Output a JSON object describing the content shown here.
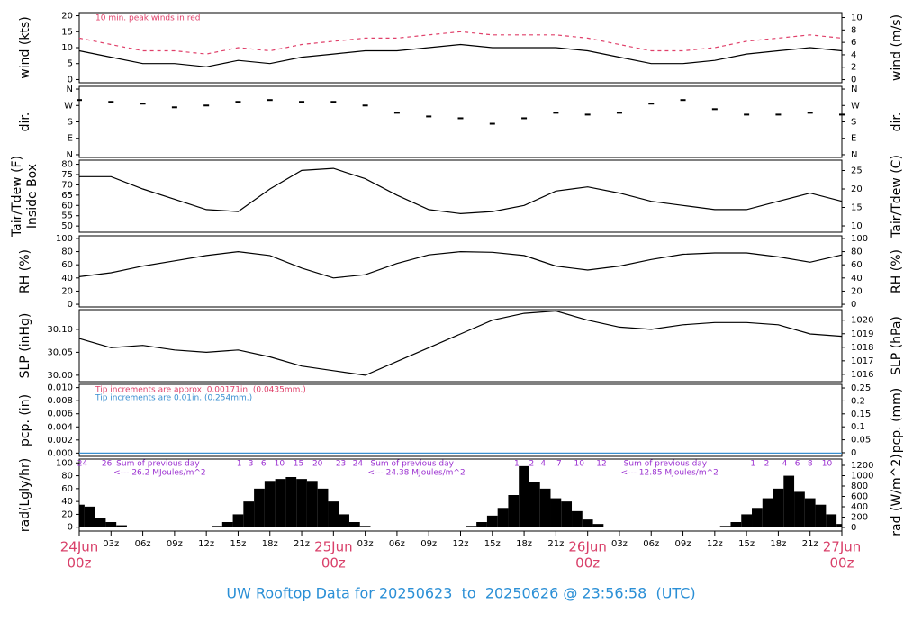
{
  "title": "UW Rooftop Data for 20250623  to  20250626 @ 23:56:58  (UTC)",
  "chart_data": [
    {
      "type": "line",
      "ylabel": [
        "wind (kts)"
      ],
      "y2label": "wind (m/s)",
      "xlim": [
        0,
        72
      ],
      "ylim": [
        -1,
        21
      ],
      "yticks": [
        0,
        5,
        10,
        15,
        20
      ],
      "y2lim": [
        -0.5,
        10.8
      ],
      "y2ticks": [
        0,
        2,
        4,
        6,
        8,
        10
      ],
      "annotations": [
        {
          "text": "10 min. peak winds in red",
          "color": "#e0406a"
        }
      ],
      "x": [
        0,
        3,
        6,
        9,
        12,
        15,
        18,
        21,
        24,
        27,
        30,
        33,
        36,
        39,
        42,
        45,
        48,
        51,
        54,
        57,
        60,
        63,
        66,
        69,
        72
      ],
      "series": [
        {
          "color": "#000000",
          "dashed": false,
          "values": [
            9,
            7,
            5,
            5,
            4,
            6,
            5,
            7,
            8,
            9,
            9,
            10,
            11,
            10,
            10,
            10,
            9,
            7,
            5,
            5,
            6,
            8,
            9,
            10,
            9
          ]
        },
        {
          "color": "#e0406a",
          "dashed": true,
          "values": [
            13,
            11,
            9,
            9,
            8,
            10,
            9,
            11,
            12,
            13,
            13,
            14,
            15,
            14,
            14,
            14,
            13,
            11,
            9,
            9,
            10,
            12,
            13,
            14,
            13
          ]
        }
      ]
    },
    {
      "type": "scatter",
      "ylabel": [
        "dir."
      ],
      "y2label": "dir.",
      "xlim": [
        0,
        72
      ],
      "ylim": [
        -15,
        375
      ],
      "yticks": [
        {
          "value": 0,
          "label": "N"
        },
        {
          "value": 90,
          "label": "E"
        },
        {
          "value": 180,
          "label": "S"
        },
        {
          "value": 270,
          "label": "W"
        },
        {
          "value": 360,
          "label": "N"
        }
      ],
      "y2lim": [
        -15,
        375
      ],
      "y2ticks": [
        {
          "value": 0,
          "label": "N"
        },
        {
          "value": 90,
          "label": "E"
        },
        {
          "value": 180,
          "label": "S"
        },
        {
          "value": 270,
          "label": "W"
        },
        {
          "value": 360,
          "label": "N"
        }
      ],
      "x": [
        0,
        3,
        6,
        9,
        12,
        15,
        18,
        21,
        24,
        27,
        30,
        33,
        36,
        39,
        42,
        45,
        48,
        51,
        54,
        57,
        60,
        63,
        66,
        69,
        72
      ],
      "series": [
        {
          "color": "#000000",
          "values": [
            300,
            290,
            280,
            260,
            270,
            290,
            300,
            290,
            290,
            270,
            230,
            210,
            200,
            170,
            200,
            230,
            220,
            230,
            280,
            300,
            250,
            220,
            220,
            230,
            220
          ]
        }
      ]
    },
    {
      "type": "line",
      "ylabel": [
        "Tair/Tdew (F)",
        "Inside Box"
      ],
      "y2label": "Tair/Tdew (C)",
      "xlim": [
        0,
        72
      ],
      "ylim": [
        47,
        82
      ],
      "yticks": [
        50,
        55,
        60,
        65,
        70,
        75,
        80
      ],
      "y2lim": [
        8.3,
        27.8
      ],
      "y2ticks": [
        10,
        15,
        20,
        25
      ],
      "x": [
        0,
        3,
        6,
        9,
        12,
        15,
        18,
        21,
        24,
        27,
        30,
        33,
        36,
        39,
        42,
        45,
        48,
        51,
        54,
        57,
        60,
        63,
        66,
        69,
        72
      ],
      "series": [
        {
          "color": "#000000",
          "dashed": false,
          "values": [
            74,
            74,
            68,
            63,
            58,
            57,
            68,
            77,
            78,
            73,
            65,
            58,
            56,
            57,
            60,
            67,
            69,
            66,
            62,
            60,
            58,
            58,
            62,
            66,
            62
          ]
        }
      ]
    },
    {
      "type": "line",
      "ylabel": [
        "RH (%)"
      ],
      "y2label": "RH (%)",
      "xlim": [
        0,
        72
      ],
      "ylim": [
        -4,
        104
      ],
      "yticks": [
        0,
        20,
        40,
        60,
        80,
        100
      ],
      "y2lim": [
        -4,
        104
      ],
      "y2ticks": [
        0,
        20,
        40,
        60,
        80,
        100
      ],
      "x": [
        0,
        3,
        6,
        9,
        12,
        15,
        18,
        21,
        24,
        27,
        30,
        33,
        36,
        39,
        42,
        45,
        48,
        51,
        54,
        57,
        60,
        63,
        66,
        69,
        72
      ],
      "series": [
        {
          "color": "#000000",
          "dashed": false,
          "values": [
            42,
            48,
            58,
            66,
            74,
            80,
            74,
            55,
            40,
            45,
            62,
            75,
            80,
            79,
            74,
            58,
            52,
            58,
            68,
            76,
            78,
            78,
            72,
            64,
            75
          ]
        }
      ]
    },
    {
      "type": "line",
      "ylabel": [
        "SLP (inHg)"
      ],
      "y2label": "SLP (hPa)",
      "xlim": [
        0,
        72
      ],
      "ylim": [
        29.986,
        30.143
      ],
      "yticks": [
        {
          "value": 30,
          "label": "30.00"
        },
        30.05,
        {
          "value": 30.1,
          "label": "30.10"
        }
      ],
      "y2lim": [
        1015.46,
        1020.78
      ],
      "y2ticks": [
        1016,
        1017,
        1018,
        1019,
        1020
      ],
      "x": [
        0,
        3,
        6,
        9,
        12,
        15,
        18,
        21,
        24,
        27,
        30,
        33,
        36,
        39,
        42,
        45,
        48,
        51,
        54,
        57,
        60,
        63,
        66,
        69,
        72
      ],
      "series": [
        {
          "color": "#000000",
          "dashed": false,
          "values": [
            30.08,
            30.06,
            30.065,
            30.055,
            30.05,
            30.055,
            30.04,
            30.02,
            30.01,
            30.0,
            30.03,
            30.06,
            30.09,
            30.12,
            30.135,
            30.14,
            30.12,
            30.105,
            30.1,
            30.11,
            30.115,
            30.115,
            30.11,
            30.09,
            30.085
          ]
        }
      ]
    },
    {
      "type": "line",
      "ylabel": [
        "pcp. (in)"
      ],
      "y2label": "pcp. (mm)",
      "xlim": [
        0,
        72
      ],
      "ylim": [
        -0.0005,
        0.0105
      ],
      "yticks": [
        {
          "value": 0,
          "label": "0.000"
        },
        0.002,
        0.004,
        0.006,
        0.008,
        {
          "value": 0.01,
          "label": "0.010"
        }
      ],
      "y2lim": [
        -0.014,
        0.264
      ],
      "y2ticks": [
        0,
        0.05,
        0.1,
        0.15,
        0.2,
        0.25
      ],
      "annotations": [
        {
          "text": "Tip increments are approx. 0.00171in. (0.0435mm.)",
          "color": "#e0406a"
        },
        {
          "text": "Tip increments are 0.01in. (0.254mm.)",
          "color": "#3a8fd0"
        }
      ],
      "x": [
        0,
        3,
        6,
        9,
        12,
        15,
        18,
        21,
        24,
        27,
        30,
        33,
        36,
        39,
        42,
        45,
        48,
        51,
        54,
        57,
        60,
        63,
        66,
        69,
        72
      ],
      "series": [
        {
          "color": "#3a8fd0",
          "dashed": false,
          "values": [
            0,
            0,
            0,
            0,
            0,
            0,
            0,
            0,
            0,
            0,
            0,
            0,
            0,
            0,
            0,
            0,
            0,
            0,
            0,
            0,
            0,
            0,
            0,
            0,
            0
          ]
        }
      ]
    },
    {
      "type": "bar",
      "ylabel": [
        "rad(Lgly/hr)"
      ],
      "y2label": "rad (W/m^2)",
      "xlim": [
        0,
        72
      ],
      "ylim": [
        -6,
        106
      ],
      "yticks": [
        0,
        20,
        40,
        60,
        80,
        100
      ],
      "y2lim": [
        -70,
        1322
      ],
      "y2ticks": [
        0,
        200,
        400,
        600,
        800,
        1000,
        1200
      ],
      "x": [
        0,
        1,
        2,
        3,
        4,
        5,
        6,
        7,
        8,
        9,
        10,
        11,
        12,
        13,
        14,
        15,
        16,
        17,
        18,
        19,
        20,
        21,
        22,
        23,
        24,
        25,
        26,
        27,
        28,
        29,
        30,
        31,
        32,
        33,
        34,
        35,
        36,
        37,
        38,
        39,
        40,
        41,
        42,
        43,
        44,
        45,
        46,
        47,
        48,
        49,
        50,
        51,
        52,
        53,
        54,
        55,
        56,
        57,
        58,
        59,
        60,
        61,
        62,
        63,
        64,
        65,
        66,
        67,
        68,
        69,
        70,
        71,
        72
      ],
      "series": [
        {
          "color": "#000000",
          "values": [
            35,
            32,
            15,
            8,
            3,
            1,
            0,
            0,
            0,
            0,
            0,
            0,
            0,
            2,
            8,
            20,
            40,
            60,
            72,
            75,
            78,
            75,
            72,
            60,
            40,
            20,
            8,
            2,
            0,
            0,
            0,
            0,
            0,
            0,
            0,
            0,
            0,
            2,
            8,
            18,
            30,
            50,
            95,
            70,
            60,
            45,
            40,
            25,
            12,
            5,
            1,
            0,
            0,
            0,
            0,
            0,
            0,
            0,
            0,
            0,
            0,
            2,
            8,
            20,
            30,
            45,
            60,
            80,
            55,
            45,
            35,
            20,
            5
          ]
        }
      ],
      "hour_labels": [
        {
          "label": "24",
          "x": 0.3
        },
        {
          "label": "26",
          "x": 2.6
        },
        {
          "label": "1",
          "x": 15.1
        },
        {
          "label": "3",
          "x": 16.2
        },
        {
          "label": "6",
          "x": 17.4
        },
        {
          "label": "10",
          "x": 18.9
        },
        {
          "label": "15",
          "x": 20.7
        },
        {
          "label": "20",
          "x": 22.5
        },
        {
          "label": "23",
          "x": 24.7
        },
        {
          "label": "24",
          "x": 26.3
        },
        {
          "label": "1",
          "x": 41.3
        },
        {
          "label": "2",
          "x": 42.7
        },
        {
          "label": "4",
          "x": 43.8
        },
        {
          "label": "7",
          "x": 45.3
        },
        {
          "label": "10",
          "x": 47.2
        },
        {
          "label": "12",
          "x": 49.3
        },
        {
          "label": "1",
          "x": 63.6
        },
        {
          "label": "2",
          "x": 64.9
        },
        {
          "label": "4",
          "x": 66.6
        },
        {
          "label": "6",
          "x": 67.8
        },
        {
          "label": "8",
          "x": 69.0
        },
        {
          "label": "10",
          "x": 70.6
        }
      ],
      "day_sums": [
        {
          "label": "Sum of previous day",
          "note": "<--- 26.2 MJoules/m^2",
          "x": 3.5
        },
        {
          "label": "Sum of previous day",
          "note": "<--- 24.38 MJoules/m^2",
          "x": 27.5
        },
        {
          "label": "Sum of previous day",
          "note": "<--- 12.85 MJoules/m^2",
          "x": 51.4
        }
      ],
      "xticks": [
        {
          "value": 0,
          "label": "24Jun",
          "sublabel": "00z"
        },
        {
          "value": 3,
          "label": "03z"
        },
        {
          "value": 6,
          "label": "06z"
        },
        {
          "value": 9,
          "label": "09z"
        },
        {
          "value": 12,
          "label": "12z"
        },
        {
          "value": 15,
          "label": "15z"
        },
        {
          "value": 18,
          "label": "18z"
        },
        {
          "value": 21,
          "label": "21z"
        },
        {
          "value": 24,
          "label": "25Jun",
          "sublabel": "00z"
        },
        {
          "value": 27,
          "label": "03z"
        },
        {
          "value": 30,
          "label": "06z"
        },
        {
          "value": 33,
          "label": "09z"
        },
        {
          "value": 36,
          "label": "12z"
        },
        {
          "value": 39,
          "label": "15z"
        },
        {
          "value": 42,
          "label": "18z"
        },
        {
          "value": 45,
          "label": "21z"
        },
        {
          "value": 48,
          "label": "26Jun",
          "sublabel": "00z"
        },
        {
          "value": 51,
          "label": "03z"
        },
        {
          "value": 54,
          "label": "06z"
        },
        {
          "value": 57,
          "label": "09z"
        },
        {
          "value": 60,
          "label": "12z"
        },
        {
          "value": 63,
          "label": "15z"
        },
        {
          "value": 66,
          "label": "18z"
        },
        {
          "value": 69,
          "label": "21z"
        },
        {
          "value": 72,
          "label": "27Jun",
          "sublabel": "00z"
        }
      ]
    }
  ]
}
